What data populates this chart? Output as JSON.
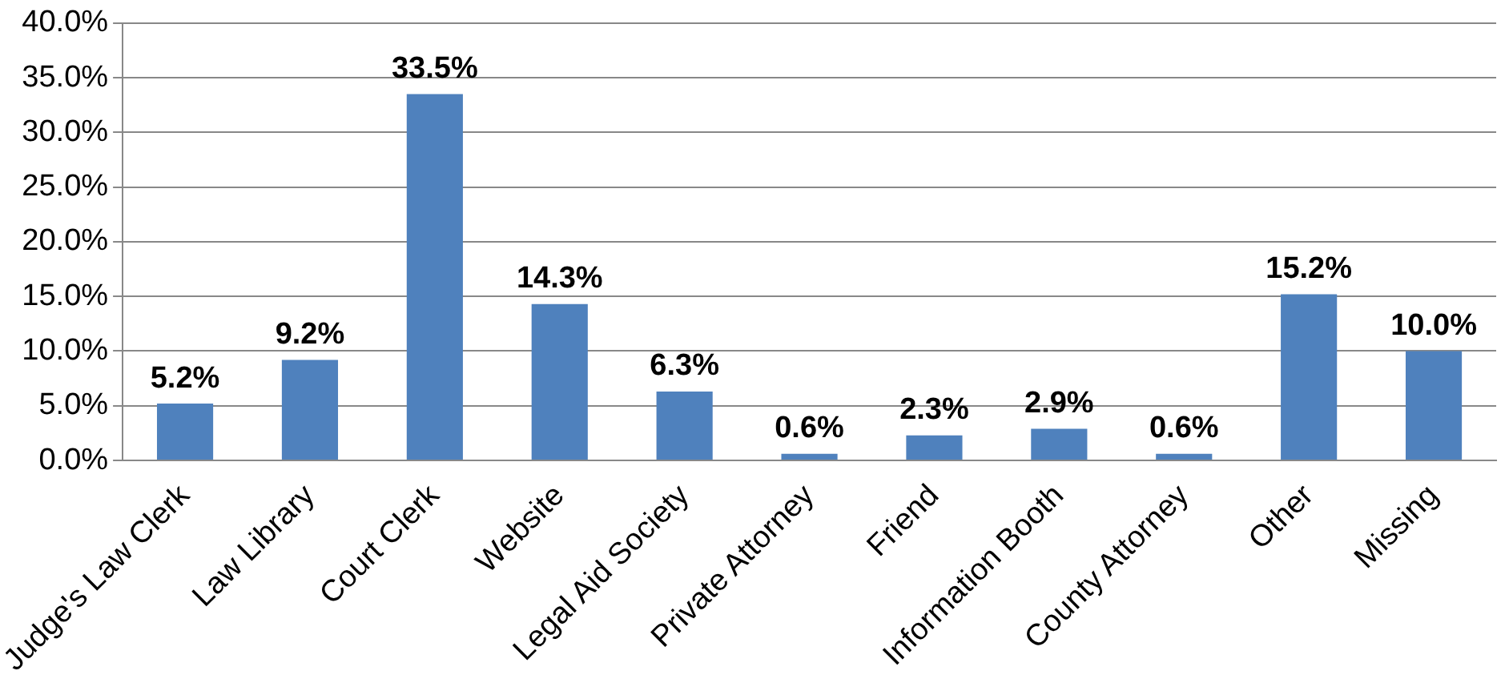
{
  "chart_data": {
    "type": "bar",
    "categories": [
      "Judge's Law Clerk",
      "Law Library",
      "Court Clerk",
      "Website",
      "Legal Aid Society",
      "Private Attorney",
      "Friend",
      "Information Booth",
      "County Attorney",
      "Other",
      "Missing"
    ],
    "values": [
      5.2,
      9.2,
      33.5,
      14.3,
      6.3,
      0.6,
      2.3,
      2.9,
      0.6,
      15.2,
      10.0
    ],
    "value_labels": [
      "5.2%",
      "9.2%",
      "33.5%",
      "14.3%",
      "6.3%",
      "0.6%",
      "2.3%",
      "2.9%",
      "0.6%",
      "15.2%",
      "10.0%"
    ],
    "color": "#4f81bd",
    "ylim": [
      0,
      40
    ],
    "yticks": [
      {
        "value": 0,
        "label": "0.0%"
      },
      {
        "value": 5,
        "label": "5.0%"
      },
      {
        "value": 10,
        "label": "10.0%"
      },
      {
        "value": 15,
        "label": "15.0%"
      },
      {
        "value": 20,
        "label": "20.0%"
      },
      {
        "value": 25,
        "label": "25.0%"
      },
      {
        "value": 30,
        "label": "30.0%"
      },
      {
        "value": 35,
        "label": "35.0%"
      },
      {
        "value": 40,
        "label": "40.0%"
      }
    ],
    "grid": "y",
    "legend": false
  }
}
